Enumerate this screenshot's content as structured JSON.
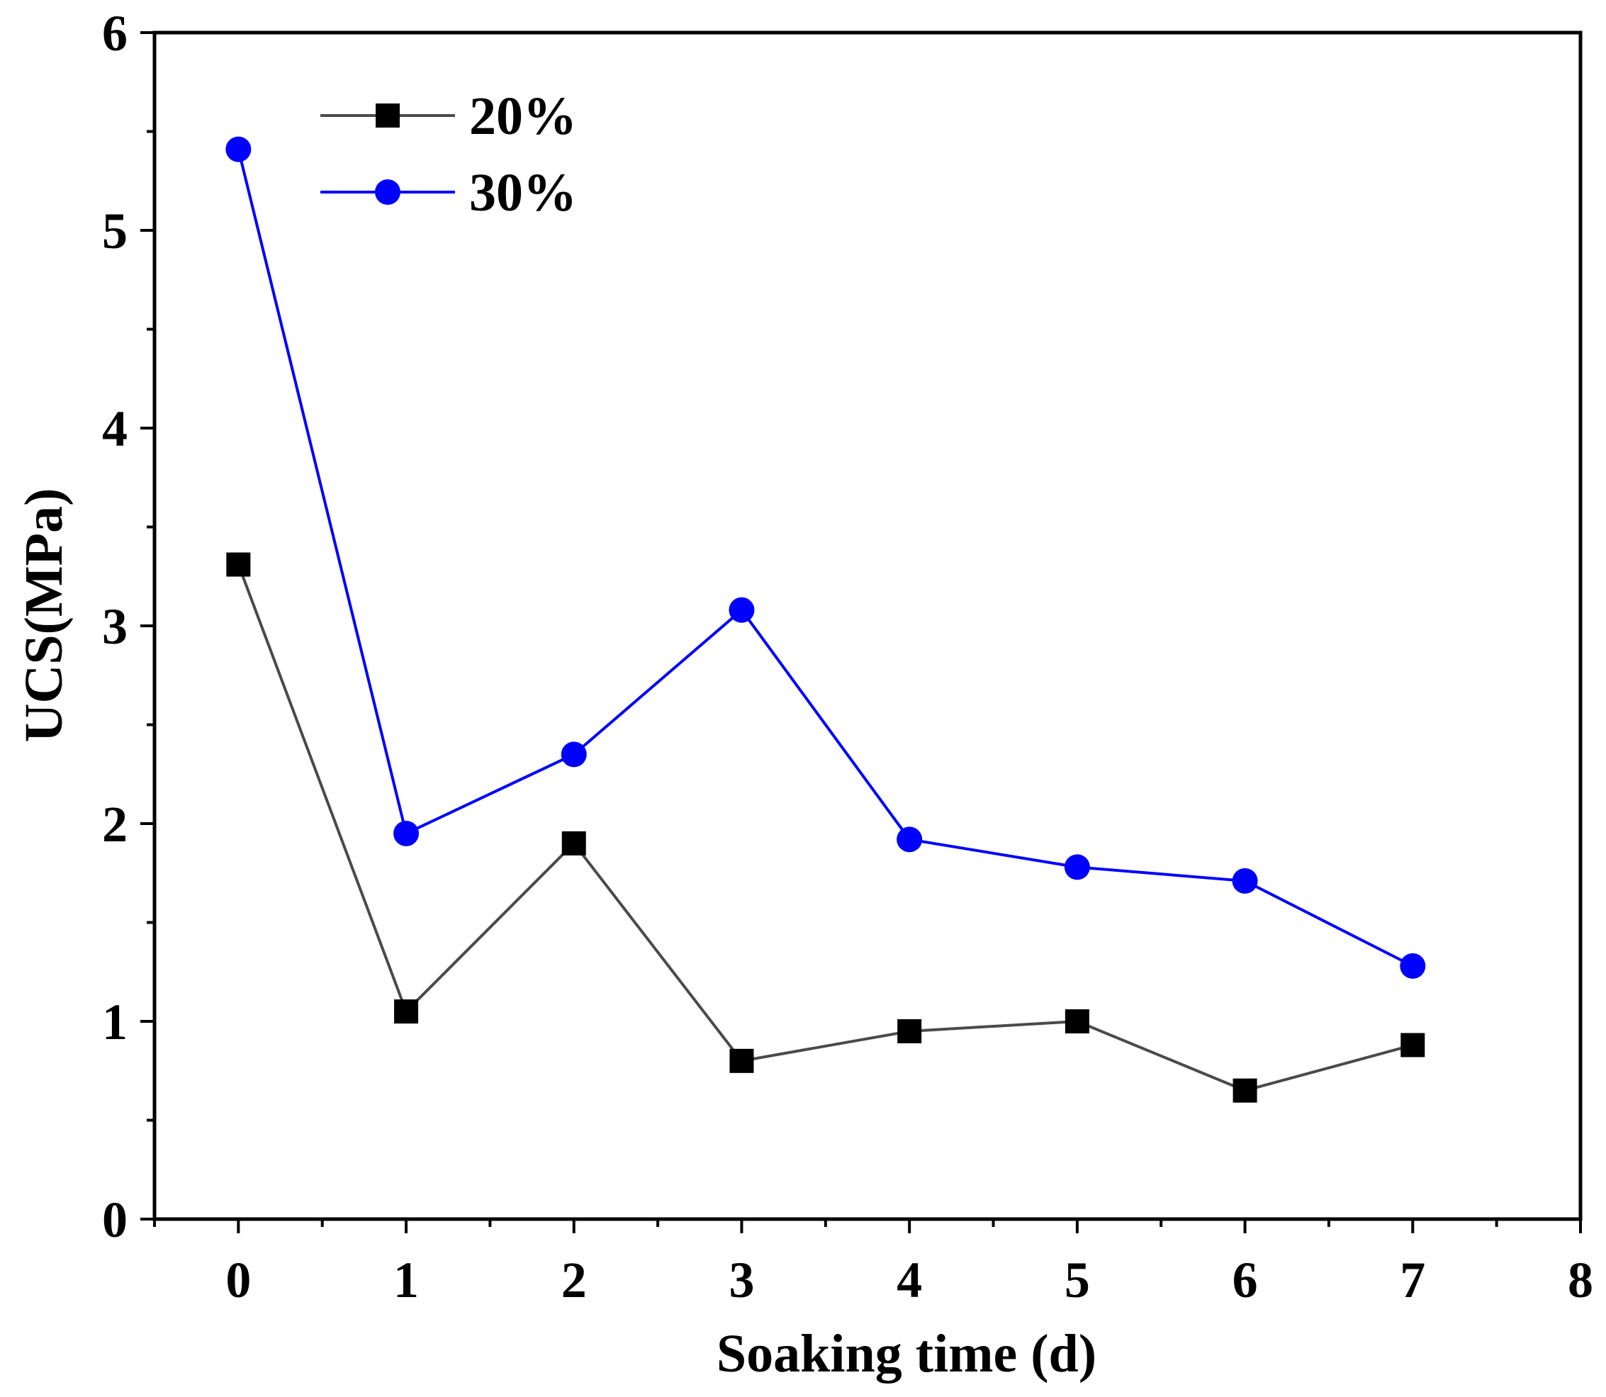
{
  "chart_data": {
    "type": "line",
    "title": "",
    "xlabel": "Soaking time (d)",
    "ylabel": "UCS(MPa)",
    "xlim": [
      -0.5,
      8
    ],
    "ylim": [
      0,
      6
    ],
    "xticks": [
      0,
      1,
      2,
      3,
      4,
      5,
      6,
      7,
      8
    ],
    "yticks": [
      0,
      1,
      2,
      3,
      4,
      5,
      6
    ],
    "x": [
      0,
      1,
      2,
      3,
      4,
      5,
      6,
      7
    ],
    "grid": false,
    "legend_position": "top-left",
    "series": [
      {
        "name": "20%",
        "marker": "square",
        "line_color": "#4a4a4a",
        "marker_color": "#000000",
        "values": [
          3.31,
          1.05,
          1.9,
          0.8,
          0.95,
          1.0,
          0.65,
          0.88
        ]
      },
      {
        "name": "30%",
        "marker": "circle",
        "line_color": "#0000ff",
        "marker_color": "#0000ff",
        "values": [
          5.41,
          1.95,
          2.35,
          3.08,
          1.92,
          1.78,
          1.71,
          1.28
        ]
      }
    ]
  }
}
